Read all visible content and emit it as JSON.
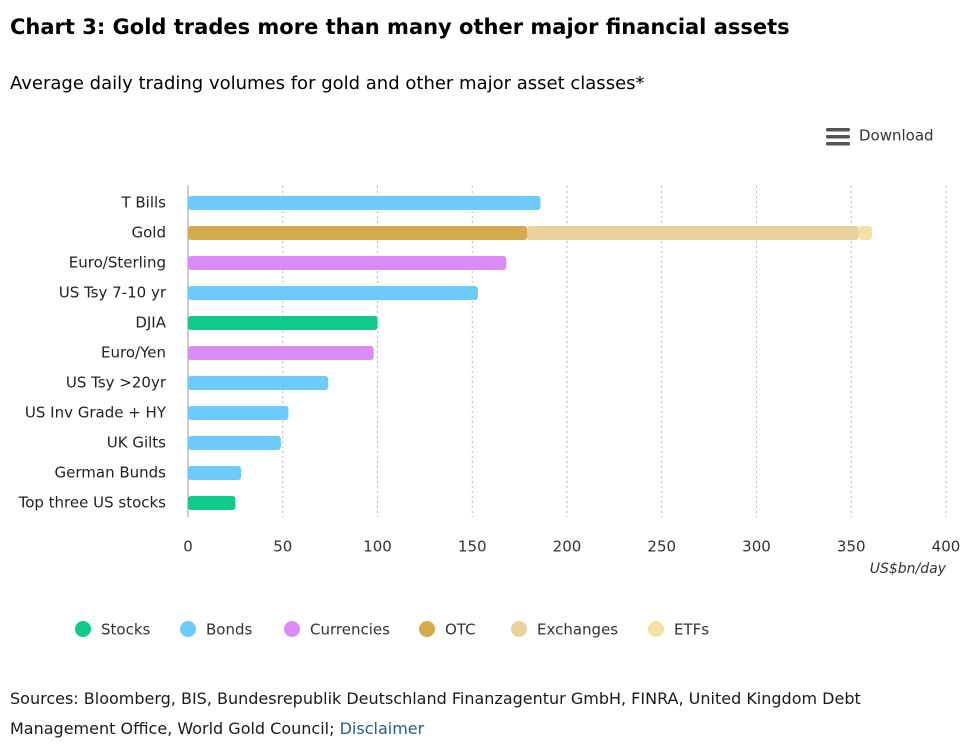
{
  "chart_data": {
    "type": "bar",
    "orientation": "horizontal",
    "stacked": true,
    "title": "Chart 3: Gold trades more than many other major financial assets",
    "subtitle": "Average daily trading volumes for gold and other major asset classes*",
    "x_label": "US$bn/day",
    "categories": [
      "T Bills",
      "Gold",
      "Euro/Sterling",
      "US Tsy 7-10 yr",
      "DJIA",
      "Euro/Yen",
      "US Tsy >20yr",
      "US Inv Grade + HY",
      "UK Gilts",
      "German Bunds",
      "Top three US stocks"
    ],
    "series": [
      {
        "name": "Stocks",
        "color": "#10c98b",
        "values": [
          null,
          null,
          null,
          null,
          100,
          null,
          null,
          null,
          null,
          null,
          25
        ]
      },
      {
        "name": "Bonds",
        "color": "#6ccbf8",
        "values": [
          186,
          null,
          null,
          153,
          null,
          null,
          74,
          53,
          49,
          28,
          null
        ]
      },
      {
        "name": "Currencies",
        "color": "#d98cf5",
        "values": [
          null,
          null,
          168,
          null,
          null,
          98,
          null,
          null,
          null,
          null,
          null
        ]
      },
      {
        "name": "OTC",
        "color": "#d4aa4c",
        "values": [
          null,
          179,
          null,
          null,
          null,
          null,
          null,
          null,
          null,
          null,
          null
        ]
      },
      {
        "name": "Exchanges",
        "color": "#ead29e",
        "values": [
          null,
          175,
          null,
          null,
          null,
          null,
          null,
          null,
          null,
          null,
          null
        ]
      },
      {
        "name": "ETFs",
        "color": "#f6e0a4",
        "values": [
          null,
          7,
          null,
          null,
          null,
          null,
          null,
          null,
          null,
          null,
          null
        ]
      }
    ],
    "xlim": [
      0,
      400
    ],
    "xticks": [
      0,
      50,
      100,
      150,
      200,
      250,
      300,
      350,
      400
    ],
    "grid": true,
    "legend": "bottom"
  },
  "download": "Download",
  "sources": "Sources: Bloomberg, BIS, Bundesrepublik Deutschland Finanzagentur GmbH, FINRA, United Kingdom Debt Management Office, World Gold Council;",
  "disclaimer": "Disclaimer"
}
